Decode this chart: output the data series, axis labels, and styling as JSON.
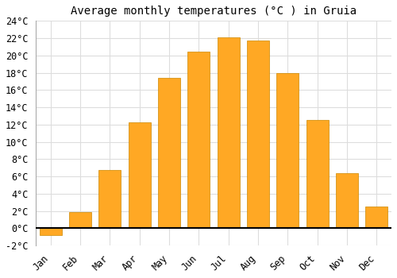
{
  "title": "Average monthly temperatures (°C ) in Gruia",
  "months": [
    "Jan",
    "Feb",
    "Mar",
    "Apr",
    "May",
    "Jun",
    "Jul",
    "Aug",
    "Sep",
    "Oct",
    "Nov",
    "Dec"
  ],
  "values": [
    -0.8,
    1.9,
    6.7,
    12.3,
    17.4,
    20.4,
    22.1,
    21.7,
    18.0,
    12.5,
    6.4,
    2.5
  ],
  "bar_color": "#FFA824",
  "bar_edge_color": "#CC8800",
  "background_color": "#FFFFFF",
  "grid_color": "#DDDDDD",
  "ylim": [
    -2,
    24
  ],
  "yticks": [
    -2,
    0,
    2,
    4,
    6,
    8,
    10,
    12,
    14,
    16,
    18,
    20,
    22,
    24
  ],
  "title_fontsize": 10,
  "tick_fontsize": 8.5,
  "font_family": "monospace"
}
